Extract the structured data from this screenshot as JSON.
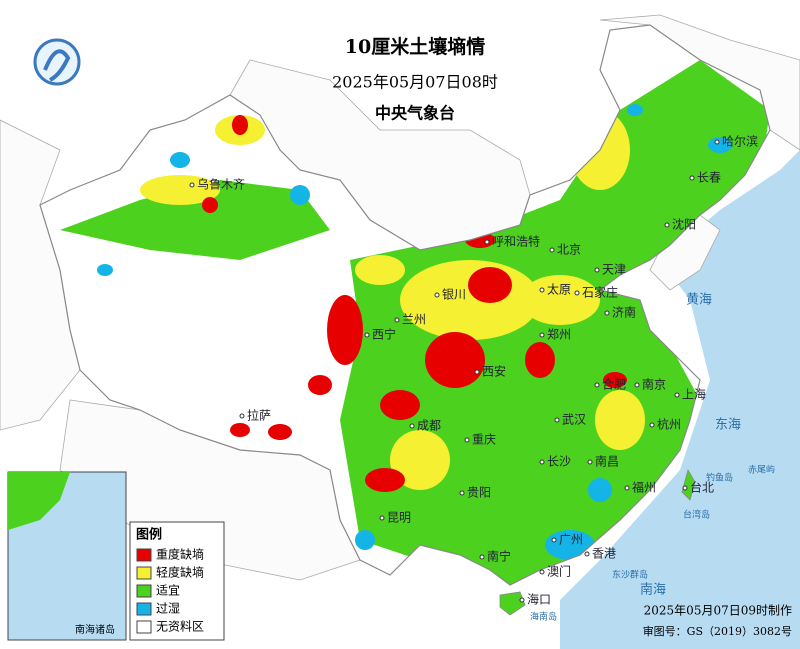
{
  "header": {
    "title": "10厘米土壤墒情",
    "datetime": "2025年05月07日08时",
    "agency": "中央气象台"
  },
  "legend": {
    "title": "图例",
    "items": [
      {
        "label": "重度缺墒",
        "color": "#e60000"
      },
      {
        "label": "轻度缺墒",
        "color": "#f5f032"
      },
      {
        "label": "适宜",
        "color": "#4cd11e"
      },
      {
        "label": "过湿",
        "color": "#14b4e6"
      },
      {
        "label": "无资料区",
        "color": "#ffffff"
      }
    ]
  },
  "cities": [
    "乌鲁木齐",
    "拉萨",
    "西宁",
    "银川",
    "兰州",
    "呼和浩特",
    "北京",
    "天津",
    "石家庄",
    "太原",
    "济南",
    "郑州",
    "西安",
    "成都",
    "重庆",
    "武汉",
    "合肥",
    "南京",
    "上海",
    "杭州",
    "长沙",
    "南昌",
    "福州",
    "贵阳",
    "昆明",
    "南宁",
    "广州",
    "香港",
    "澳门",
    "海口",
    "沈阳",
    "长春",
    "哈尔滨",
    "台北"
  ],
  "seas": [
    "黄海",
    "东海",
    "南海",
    "台湾岛",
    "东沙群岛",
    "海南岛",
    "钓鱼岛",
    "赤尾屿"
  ],
  "inset": {
    "label": "南海诸岛"
  },
  "footer": {
    "issued": "2025年05月07日09时制作",
    "review": "审图号：GS（2019）3082号"
  }
}
